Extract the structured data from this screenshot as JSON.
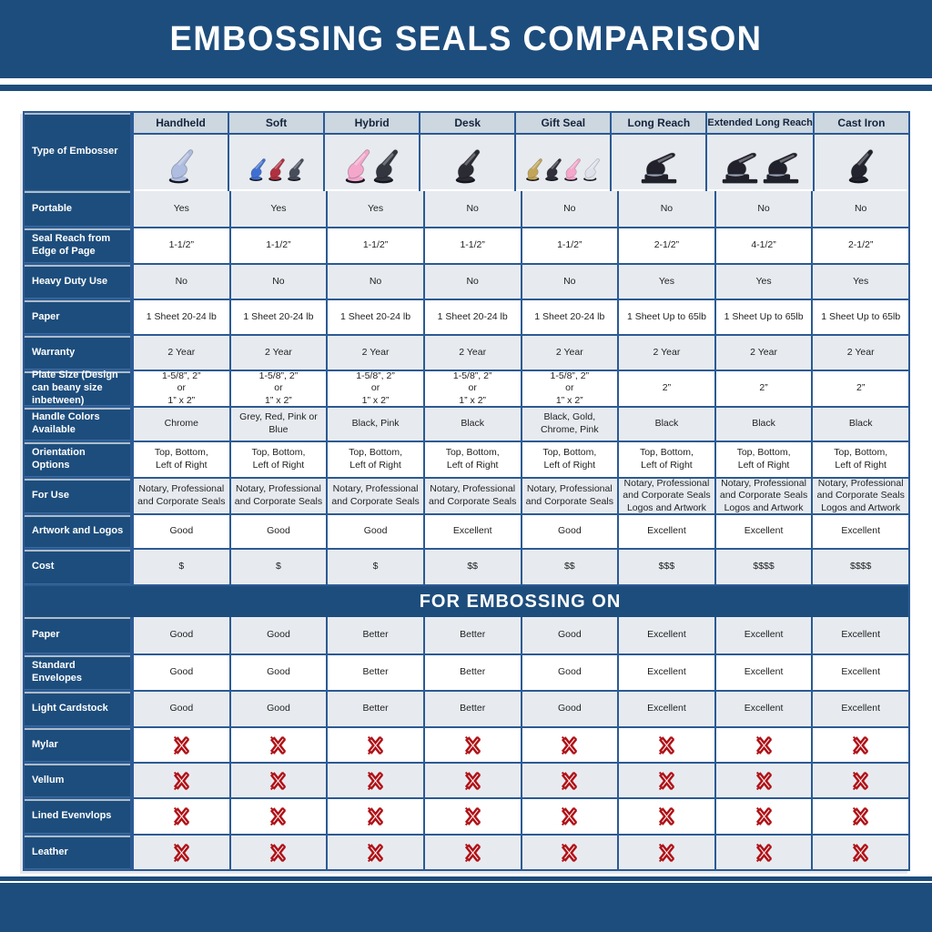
{
  "title": "EMBOSSING SEALS COMPARISON",
  "section2_title": "FOR EMBOSSING ON",
  "type_row_label": "Type of Embosser",
  "columns": [
    "Handheld",
    "Soft",
    "Hybrid",
    "Desk",
    "Gift Seal",
    "Long Reach",
    "Extended Long Reach",
    "Cast Iron"
  ],
  "embosser_icons": [
    {
      "column": "Handheld",
      "style": "handheld",
      "colors": [
        "#aebde0"
      ]
    },
    {
      "column": "Soft",
      "style": "handheld",
      "colors": [
        "#3f6fd1",
        "#b03040",
        "#474d5a"
      ]
    },
    {
      "column": "Hybrid",
      "style": "handheld",
      "colors": [
        "#f4a6cb",
        "#33353f"
      ]
    },
    {
      "column": "Desk",
      "style": "handheld",
      "colors": [
        "#2a2b33"
      ]
    },
    {
      "column": "Gift Seal",
      "style": "handheld",
      "colors": [
        "#c2a558",
        "#30313b",
        "#f4a6cb",
        "#dfe2ea"
      ]
    },
    {
      "column": "Long Reach",
      "style": "desk",
      "colors": [
        "#20212b"
      ]
    },
    {
      "column": "Extended Long Reach",
      "style": "desk",
      "colors": [
        "#20212b",
        "#20212b"
      ]
    },
    {
      "column": "Cast Iron",
      "style": "handheld",
      "colors": [
        "#23242e"
      ]
    }
  ],
  "spec_rows": [
    {
      "label": "Portable",
      "values": [
        "Yes",
        "Yes",
        "Yes",
        "No",
        "No",
        "No",
        "No",
        "No"
      ]
    },
    {
      "label": "Seal Reach from Edge of Page",
      "values": [
        "1-1/2”",
        "1-1/2”",
        "1-1/2”",
        "1-1/2”",
        "1-1/2”",
        "2-1/2”",
        "4-1/2”",
        "2-1/2”"
      ]
    },
    {
      "label": "Heavy Duty Use",
      "values": [
        "No",
        "No",
        "No",
        "No",
        "No",
        "Yes",
        "Yes",
        "Yes"
      ]
    },
    {
      "label": "Paper",
      "values": [
        "1 Sheet 20-24 lb",
        "1 Sheet 20-24 lb",
        "1 Sheet 20-24 lb",
        "1 Sheet 20-24 lb",
        "1 Sheet 20-24 lb",
        "1 Sheet Up to 65lb",
        "1 Sheet Up to 65lb",
        "1 Sheet Up to 65lb"
      ]
    },
    {
      "label": "Warranty",
      "values": [
        "2 Year",
        "2 Year",
        "2 Year",
        "2 Year",
        "2 Year",
        "2 Year",
        "2 Year",
        "2 Year"
      ]
    },
    {
      "label": "Plate Size (Design can beany size inbetween)",
      "values": [
        "1-5/8”, 2”\nor\n1” x 2”",
        "1-5/8”, 2”\nor\n1” x 2”",
        "1-5/8”, 2”\nor\n1” x 2”",
        "1-5/8”, 2”\nor\n1” x 2”",
        "1-5/8”, 2”\nor\n1” x 2”",
        "2”",
        "2”",
        "2”"
      ]
    },
    {
      "label": "Handle Colors Available",
      "values": [
        "Chrome",
        "Grey, Red, Pink or Blue",
        "Black, Pink",
        "Black",
        "Black, Gold, Chrome, Pink",
        "Black",
        "Black",
        "Black"
      ]
    },
    {
      "label": "Orientation Options",
      "values": [
        "Top, Bottom,\nLeft of Right",
        "Top, Bottom,\nLeft of Right",
        "Top, Bottom,\nLeft of Right",
        "Top, Bottom,\nLeft of Right",
        "Top, Bottom,\nLeft of Right",
        "Top, Bottom,\nLeft of Right",
        "Top, Bottom,\nLeft of Right",
        "Top, Bottom,\nLeft of Right"
      ]
    },
    {
      "label": "For Use",
      "values": [
        "Notary, Professional\nand Corporate Seals",
        "Notary, Professional\nand Corporate Seals",
        "Notary, Professional\nand Corporate Seals",
        "Notary, Professional\nand Corporate Seals",
        "Notary, Professional\nand Corporate Seals",
        "Notary, Professional\nand Corporate Seals\nLogos and Artwork",
        "Notary, Professional\nand Corporate Seals\nLogos and Artwork",
        "Notary, Professional\nand Corporate Seals\nLogos and Artwork"
      ]
    },
    {
      "label": "Artwork and Logos",
      "values": [
        "Good",
        "Good",
        "Good",
        "Excellent",
        "Good",
        "Excellent",
        "Excellent",
        "Excellent"
      ]
    },
    {
      "label": "Cost",
      "values": [
        "$",
        "$",
        "$",
        "$$",
        "$$",
        "$$$",
        "$$$$",
        "$$$$"
      ]
    }
  ],
  "embossing_rows": [
    {
      "label": "Paper",
      "values": [
        "Good",
        "Good",
        "Better",
        "Better",
        "Good",
        "Excellent",
        "Excellent",
        "Excellent"
      ]
    },
    {
      "label": "Standard Envelopes",
      "values": [
        "Good",
        "Good",
        "Better",
        "Better",
        "Good",
        "Excellent",
        "Excellent",
        "Excellent"
      ]
    },
    {
      "label": "Light Cardstock",
      "values": [
        "Good",
        "Good",
        "Better",
        "Better",
        "Good",
        "Excellent",
        "Excellent",
        "Excellent"
      ]
    },
    {
      "label": "Mylar",
      "values": [
        "X",
        "X",
        "X",
        "X",
        "X",
        "X",
        "X",
        "X"
      ]
    },
    {
      "label": "Vellum",
      "values": [
        "X",
        "X",
        "X",
        "X",
        "X",
        "X",
        "X",
        "X"
      ]
    },
    {
      "label": "Lined Evenvlops",
      "values": [
        "X",
        "X",
        "X",
        "X",
        "X",
        "X",
        "X",
        "X"
      ]
    },
    {
      "label": "Leather",
      "values": [
        "X",
        "X",
        "X",
        "X",
        "X",
        "X",
        "X",
        "X"
      ]
    }
  ],
  "colors": {
    "banner_blue": "#1d4d7c",
    "grid_blue": "#2c5a94",
    "header_band": "#ccd7e0",
    "row_gray": "#e7ebf0",
    "row_white": "#ffffff",
    "x_red": "#b01217"
  }
}
